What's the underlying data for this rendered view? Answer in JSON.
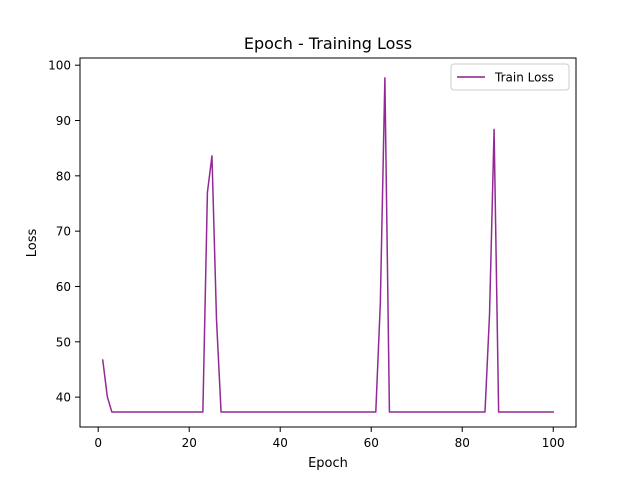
{
  "chart_data": {
    "type": "line",
    "title": "Epoch - Training Loss",
    "xlabel": "Epoch",
    "ylabel": "Loss",
    "xlim": [
      -4,
      105
    ],
    "ylim": [
      34.6,
      101.3
    ],
    "xticks": [
      0,
      20,
      40,
      60,
      80,
      100
    ],
    "yticks": [
      40,
      50,
      60,
      70,
      80,
      90,
      100
    ],
    "grid": false,
    "legend_position": "top-right",
    "series": [
      {
        "name": "Train Loss",
        "color": "#8b1f8f",
        "x": [
          1,
          2,
          3,
          4,
          5,
          6,
          7,
          8,
          9,
          10,
          11,
          12,
          13,
          14,
          15,
          16,
          17,
          18,
          19,
          20,
          21,
          22,
          23,
          24,
          25,
          26,
          27,
          28,
          29,
          30,
          31,
          32,
          33,
          34,
          35,
          36,
          37,
          38,
          39,
          40,
          41,
          42,
          43,
          44,
          45,
          46,
          47,
          48,
          49,
          50,
          51,
          52,
          53,
          54,
          55,
          56,
          57,
          58,
          59,
          60,
          61,
          62,
          63,
          64,
          65,
          66,
          67,
          68,
          69,
          70,
          71,
          72,
          73,
          74,
          75,
          76,
          77,
          78,
          79,
          80,
          81,
          82,
          83,
          84,
          85,
          86,
          87,
          88,
          89,
          90,
          91,
          92,
          93,
          94,
          95,
          96,
          97,
          98,
          99,
          100
        ],
        "y": [
          46.7,
          40.1,
          37.3,
          37.3,
          37.3,
          37.3,
          37.3,
          37.3,
          37.3,
          37.3,
          37.3,
          37.3,
          37.3,
          37.3,
          37.3,
          37.3,
          37.3,
          37.3,
          37.3,
          37.3,
          37.3,
          37.3,
          37.3,
          77.0,
          83.6,
          54.0,
          37.3,
          37.3,
          37.3,
          37.3,
          37.3,
          37.3,
          37.3,
          37.3,
          37.3,
          37.3,
          37.3,
          37.3,
          37.3,
          37.3,
          37.3,
          37.3,
          37.3,
          37.3,
          37.3,
          37.3,
          37.3,
          37.3,
          37.3,
          37.3,
          37.3,
          37.3,
          37.3,
          37.3,
          37.3,
          37.3,
          37.3,
          37.3,
          37.3,
          37.3,
          37.3,
          57.0,
          97.7,
          37.3,
          37.3,
          37.3,
          37.3,
          37.3,
          37.3,
          37.3,
          37.3,
          37.3,
          37.3,
          37.3,
          37.3,
          37.3,
          37.3,
          37.3,
          37.3,
          37.3,
          37.3,
          37.3,
          37.3,
          37.3,
          37.3,
          55.0,
          88.4,
          37.3,
          37.3,
          37.3,
          37.3,
          37.3,
          37.3,
          37.3,
          37.3,
          37.3,
          37.3,
          37.3,
          37.3,
          37.3
        ]
      }
    ]
  }
}
